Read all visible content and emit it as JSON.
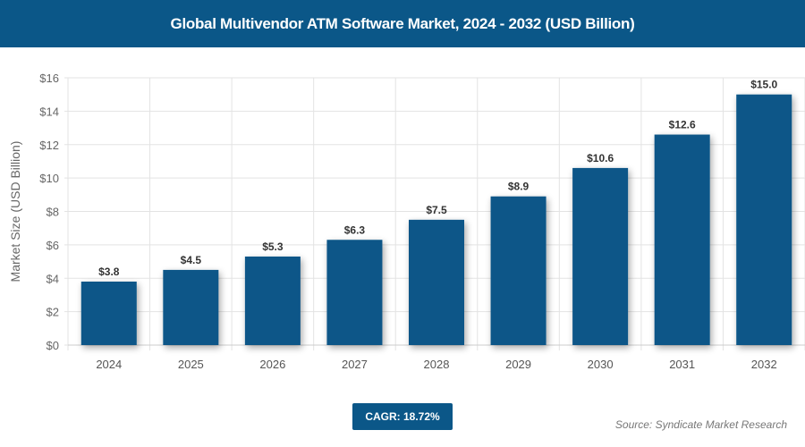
{
  "header": {
    "title": "Global Multivendor ATM Software Market, 2024 - 2032 (USD Billion)"
  },
  "chart_data": {
    "type": "bar",
    "title": "Global Multivendor ATM Software Market, 2024 - 2032 (USD Billion)",
    "categories": [
      "2024",
      "2025",
      "2026",
      "2027",
      "2028",
      "2029",
      "2030",
      "2031",
      "2032"
    ],
    "values": [
      3.8,
      4.5,
      5.3,
      6.3,
      7.5,
      8.9,
      10.6,
      12.6,
      15.0
    ],
    "data_labels": [
      "$3.8",
      "$4.5",
      "$5.3",
      "$6.3",
      "$7.5",
      "$8.9",
      "$10.6",
      "$12.6",
      "$15.0"
    ],
    "xlabel": "",
    "ylabel": "Market Size (USD Billion)",
    "ylim": [
      0,
      16
    ],
    "yticks": [
      0,
      2,
      4,
      6,
      8,
      10,
      12,
      14,
      16
    ],
    "ytick_labels": [
      "$0",
      "$2",
      "$4",
      "$6",
      "$8",
      "$10",
      "$12",
      "$14",
      "$16"
    ],
    "grid": true,
    "bar_color": "#0b5788"
  },
  "footer": {
    "cagr": "CAGR: 18.72%",
    "source": "Source: Syndicate Market Research"
  }
}
